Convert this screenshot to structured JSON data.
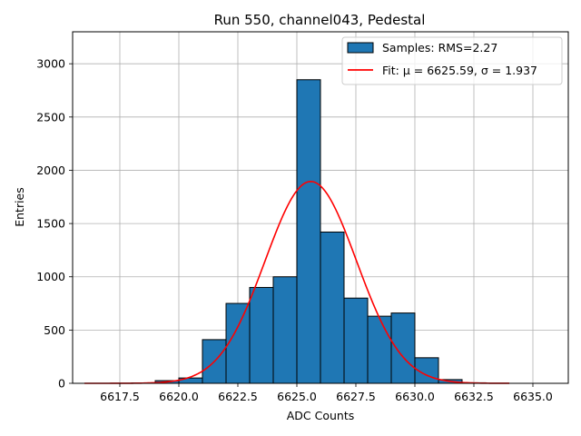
{
  "chart_data": {
    "type": "bar",
    "title": "Run 550, channel043, Pedestal",
    "xlabel": "ADC Counts",
    "ylabel": "Entries",
    "xlim": [
      6615.5,
      6636.5
    ],
    "ylim": [
      0,
      3300
    ],
    "grid": true,
    "legend_position": "top-right",
    "x_ticks": [
      6617.5,
      6620.0,
      6622.5,
      6625.0,
      6627.5,
      6630.0,
      6632.5,
      6635.0
    ],
    "x_tick_labels": [
      "6617.5",
      "6620.0",
      "6622.5",
      "6625.0",
      "6627.5",
      "6630.0",
      "6632.5",
      "6635.0"
    ],
    "y_ticks": [
      0,
      500,
      1000,
      1500,
      2000,
      2500,
      3000
    ],
    "y_tick_labels": [
      "0",
      "500",
      "1000",
      "1500",
      "2000",
      "2500",
      "3000"
    ],
    "histogram": {
      "name": "Samples: RMS=2.27",
      "color": "#1f77b4",
      "edge_color": "#000000",
      "bins": [
        {
          "x0": 6618.0,
          "x1": 6619.0,
          "value": 3
        },
        {
          "x0": 6619.0,
          "x1": 6620.0,
          "value": 25
        },
        {
          "x0": 6620.0,
          "x1": 6621.0,
          "value": 50
        },
        {
          "x0": 6621.0,
          "x1": 6622.0,
          "value": 410
        },
        {
          "x0": 6622.0,
          "x1": 6623.0,
          "value": 750
        },
        {
          "x0": 6623.0,
          "x1": 6624.0,
          "value": 900
        },
        {
          "x0": 6624.0,
          "x1": 6625.0,
          "value": 1000
        },
        {
          "x0": 6625.0,
          "x1": 6626.0,
          "value": 2850
        },
        {
          "x0": 6626.0,
          "x1": 6627.0,
          "value": 1420
        },
        {
          "x0": 6627.0,
          "x1": 6628.0,
          "value": 800
        },
        {
          "x0": 6628.0,
          "x1": 6629.0,
          "value": 630
        },
        {
          "x0": 6629.0,
          "x1": 6630.0,
          "value": 660
        },
        {
          "x0": 6630.0,
          "x1": 6631.0,
          "value": 240
        },
        {
          "x0": 6631.0,
          "x1": 6632.0,
          "value": 35
        },
        {
          "x0": 6632.0,
          "x1": 6633.0,
          "value": 5
        }
      ]
    },
    "fit": {
      "name": "Fit: μ = 6625.59, σ = 1.937",
      "type": "gaussian",
      "color": "#ff0000",
      "mu": 6625.59,
      "sigma": 1.937,
      "amplitude": 1895,
      "x_range": [
        6616.0,
        6634.0
      ]
    }
  }
}
